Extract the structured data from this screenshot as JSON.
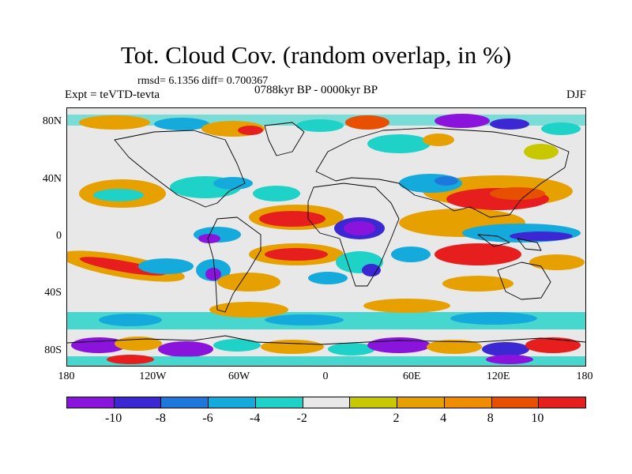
{
  "header": {
    "title": "Tot. Cloud Cov. (random overlap, in %)",
    "stats": "rmsd= 6.1356 diff= 0.700367",
    "experiment": "Expt = teVTD-tevta",
    "period": "0788kyr BP - 0000kyr BP",
    "season": "DJF"
  },
  "axes": {
    "lat_labels": [
      "80N",
      "40N",
      "0",
      "40S",
      "80S"
    ],
    "lat_values": [
      80,
      40,
      0,
      -40,
      -80
    ],
    "lon_labels": [
      "180",
      "120W",
      "60W",
      "0",
      "60E",
      "120E",
      "180"
    ],
    "lon_values": [
      -180,
      -120,
      -60,
      0,
      60,
      120,
      180
    ]
  },
  "colorbar": {
    "colors": [
      "#8a14dc",
      "#3c28d2",
      "#1e78dc",
      "#14aadc",
      "#1ed2c8",
      "#e8e8e8",
      "#c8c800",
      "#e6a000",
      "#f08c00",
      "#e65000",
      "#e61e1e"
    ],
    "labels": [
      "-10",
      "-8",
      "-6",
      "-4",
      "-2",
      "2",
      "4",
      "8",
      "10"
    ]
  }
}
